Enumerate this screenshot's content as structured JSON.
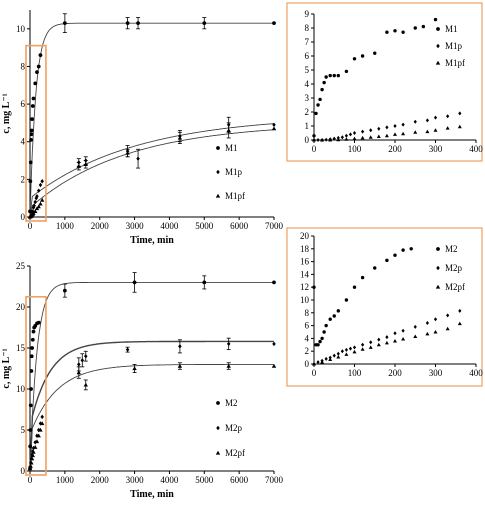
{
  "chart_data": [
    {
      "id": "main1",
      "type": "scatter",
      "xlabel": "Time, min",
      "ylabel": "c, mg L⁻¹",
      "xlim": [
        0,
        7000
      ],
      "ylim": [
        0,
        11
      ],
      "xticks": [
        0,
        1000,
        2000,
        3000,
        4000,
        5000,
        6000,
        7000
      ],
      "yticks": [
        0,
        2,
        4,
        6,
        8,
        10
      ],
      "zoom_box": {
        "x": [
          0,
          400
        ],
        "y": [
          0,
          9
        ]
      },
      "legend_position": "right",
      "series": [
        {
          "name": "M1",
          "marker": "circle",
          "x": [
            0,
            10,
            20,
            30,
            40,
            50,
            60,
            80,
            100,
            150,
            200,
            250,
            300,
            1000,
            2800,
            3100,
            5000,
            7000
          ],
          "y": [
            0.3,
            1.9,
            2.9,
            4.1,
            4.4,
            4.6,
            5.2,
            5.9,
            6.3,
            7.1,
            7.7,
            8.0,
            8.6,
            10.3,
            10.3,
            10.3,
            10.3,
            10.3
          ],
          "err": [
            0,
            0,
            0,
            0,
            0,
            0,
            0,
            0,
            0,
            0,
            0,
            0,
            0,
            0.5,
            0.3,
            0.3,
            0.3,
            0
          ],
          "fit": {
            "model": "exponential",
            "cmax": 10.3,
            "k": 0.006
          }
        },
        {
          "name": "M1p",
          "marker": "diamond",
          "x": [
            0,
            20,
            40,
            60,
            80,
            100,
            120,
            150,
            180,
            200,
            250,
            300,
            350,
            1400,
            1600,
            2800,
            3100,
            4300,
            5700,
            7000
          ],
          "y": [
            0,
            0.05,
            0.1,
            0.2,
            0.3,
            0.5,
            0.6,
            0.8,
            1.0,
            1.1,
            1.4,
            1.7,
            1.9,
            2.9,
            3.0,
            3.5,
            3.1,
            4.3,
            4.9,
            4.9
          ],
          "err": [
            0,
            0,
            0,
            0,
            0,
            0,
            0,
            0,
            0,
            0,
            0,
            0,
            0,
            0.2,
            0.2,
            0.3,
            0.5,
            0.3,
            0.4,
            0
          ],
          "fit": {
            "model": "offset_exponential",
            "c0": 1.0,
            "cmax": 5.4,
            "k": 0.00033
          }
        },
        {
          "name": "M1pf",
          "marker": "triangle",
          "x": [
            0,
            20,
            40,
            60,
            80,
            100,
            150,
            200,
            250,
            300,
            350,
            1400,
            1600,
            2800,
            4300,
            5700,
            7000
          ],
          "y": [
            0,
            0.02,
            0.05,
            0.1,
            0.15,
            0.2,
            0.3,
            0.45,
            0.55,
            0.7,
            0.9,
            2.7,
            2.8,
            3.4,
            4.2,
            4.6,
            4.7
          ],
          "err": [
            0,
            0,
            0,
            0,
            0,
            0,
            0,
            0,
            0,
            0,
            0,
            0.2,
            0.2,
            0.2,
            0.3,
            0.4,
            0
          ],
          "fit": {
            "model": "offset_exponential",
            "c0": 0.5,
            "cmax": 5.0,
            "k": 0.00036
          }
        }
      ]
    },
    {
      "id": "inset1",
      "type": "scatter",
      "xlim": [
        0,
        400
      ],
      "ylim": [
        0,
        9
      ],
      "xticks": [
        0,
        100,
        200,
        300,
        400
      ],
      "yticks": [
        0,
        1,
        2,
        3,
        4,
        5,
        6,
        7,
        8,
        9
      ],
      "legend_position": "right",
      "series": [
        {
          "name": "M1",
          "marker": "circle",
          "x": [
            0,
            5,
            10,
            15,
            20,
            25,
            30,
            40,
            50,
            60,
            80,
            100,
            120,
            150,
            180,
            200,
            220,
            250,
            270,
            300
          ],
          "y": [
            0.3,
            1.9,
            2.5,
            2.9,
            3.6,
            4.1,
            4.5,
            4.6,
            4.6,
            4.6,
            4.9,
            5.8,
            6.0,
            6.2,
            7.7,
            7.8,
            7.7,
            8.0,
            8.1,
            8.6
          ]
        },
        {
          "name": "M1p",
          "marker": "diamond",
          "x": [
            0,
            10,
            20,
            30,
            40,
            50,
            60,
            70,
            80,
            90,
            100,
            120,
            140,
            160,
            180,
            200,
            220,
            250,
            280,
            300,
            330,
            360
          ],
          "y": [
            0,
            0,
            0,
            0.02,
            0.05,
            0.1,
            0.15,
            0.2,
            0.3,
            0.4,
            0.5,
            0.6,
            0.7,
            0.8,
            0.9,
            1.0,
            1.1,
            1.3,
            1.4,
            1.6,
            1.7,
            1.9
          ]
        },
        {
          "name": "M1pf",
          "marker": "triangle",
          "x": [
            0,
            20,
            40,
            60,
            80,
            100,
            120,
            140,
            160,
            180,
            200,
            220,
            250,
            280,
            300,
            330,
            360
          ],
          "y": [
            0,
            0,
            0,
            0.02,
            0.05,
            0.1,
            0.15,
            0.2,
            0.25,
            0.3,
            0.4,
            0.45,
            0.55,
            0.6,
            0.7,
            0.85,
            0.95
          ]
        }
      ]
    },
    {
      "id": "main2",
      "type": "scatter",
      "xlabel": "Time, min",
      "ylabel": "c, mg L⁻¹",
      "xlim": [
        0,
        7000
      ],
      "ylim": [
        0,
        25
      ],
      "xticks": [
        0,
        1000,
        2000,
        3000,
        4000,
        5000,
        6000,
        7000
      ],
      "yticks": [
        0,
        5,
        10,
        15,
        20,
        25
      ],
      "zoom_box": {
        "x": [
          0,
          400
        ],
        "y": [
          0,
          21
        ]
      },
      "legend_position": "right",
      "series": [
        {
          "name": "M2",
          "marker": "circle",
          "x": [
            0,
            5,
            10,
            20,
            30,
            40,
            50,
            60,
            80,
            100,
            120,
            150,
            200,
            250,
            1000,
            3000,
            5000,
            7000
          ],
          "y": [
            0.3,
            3,
            5,
            8,
            10,
            12.2,
            14,
            15,
            16,
            17,
            17.5,
            17.7,
            18,
            18.1,
            22,
            23,
            23,
            23
          ],
          "err": [
            0,
            0,
            0,
            0,
            0,
            0,
            0,
            0,
            0,
            0,
            0,
            0,
            0,
            0,
            0.8,
            1.2,
            0.8,
            0
          ],
          "fit": {
            "model": "exponential",
            "cmax": 23,
            "k": 0.005
          }
        },
        {
          "name": "M2p",
          "marker": "diamond",
          "x": [
            0,
            20,
            40,
            60,
            80,
            100,
            150,
            200,
            250,
            300,
            350,
            1400,
            1500,
            1600,
            2800,
            4300,
            5700,
            7000
          ],
          "y": [
            0.5,
            1,
            1.5,
            2,
            2.4,
            2.8,
            3.5,
            4.3,
            5,
            5.8,
            6.6,
            13,
            13.5,
            14,
            14.8,
            15.2,
            15.5,
            15.5
          ],
          "err": [
            0,
            0,
            0,
            0,
            0,
            0,
            0,
            0,
            0,
            0,
            0,
            0.8,
            0.8,
            0.6,
            0.3,
            0.8,
            0.7,
            0
          ],
          "fit": {
            "model": "offset_exponential",
            "c0": 5.5,
            "cmax": 15.8,
            "k": 0.0018
          }
        },
        {
          "name": "M2pf",
          "marker": "triangle",
          "x": [
            0,
            20,
            40,
            60,
            80,
            100,
            150,
            200,
            250,
            300,
            350,
            1400,
            1600,
            3000,
            4300,
            5700,
            7000
          ],
          "y": [
            0.3,
            0.6,
            1,
            1.5,
            1.9,
            2.3,
            2.9,
            3.6,
            4.3,
            5,
            5.8,
            12,
            10.5,
            12.5,
            12.8,
            12.8,
            12.8
          ],
          "err": [
            0,
            0,
            0,
            0,
            0,
            0,
            0,
            0,
            0,
            0,
            0,
            0.7,
            0.6,
            0.5,
            0.4,
            0.4,
            0
          ],
          "fit": {
            "model": "offset_exponential",
            "c0": 4.5,
            "cmax": 13.0,
            "k": 0.0013
          }
        }
      ]
    },
    {
      "id": "inset2",
      "type": "scatter",
      "xlim": [
        0,
        400
      ],
      "ylim": [
        0,
        20
      ],
      "xticks": [
        0,
        100,
        200,
        300,
        400
      ],
      "yticks": [
        0,
        2,
        4,
        6,
        8,
        10,
        12,
        14,
        16,
        18,
        20
      ],
      "legend_position": "right",
      "series": [
        {
          "name": "M2",
          "marker": "circle",
          "x": [
            0,
            5,
            10,
            15,
            20,
            25,
            30,
            40,
            50,
            60,
            80,
            100,
            120,
            150,
            180,
            200,
            220,
            240
          ],
          "y": [
            12,
            3,
            3,
            3.5,
            4,
            5,
            6,
            7,
            7.5,
            8.3,
            10,
            12,
            13.5,
            15,
            16.2,
            17,
            17.8,
            18
          ]
        },
        {
          "name": "M2p",
          "marker": "diamond",
          "x": [
            0,
            10,
            20,
            30,
            40,
            50,
            60,
            70,
            80,
            90,
            100,
            120,
            140,
            160,
            180,
            200,
            220,
            250,
            280,
            300,
            330,
            360
          ],
          "y": [
            0,
            0.3,
            0.5,
            0.8,
            1.0,
            1.3,
            1.6,
            2.0,
            2.2,
            2.4,
            2.6,
            3.0,
            3.4,
            3.8,
            4.2,
            4.8,
            5.2,
            5.8,
            6.4,
            7.0,
            7.6,
            8.3
          ]
        },
        {
          "name": "M2pf",
          "marker": "triangle",
          "x": [
            0,
            20,
            40,
            60,
            80,
            100,
            120,
            140,
            160,
            180,
            200,
            220,
            250,
            280,
            300,
            330,
            360
          ],
          "y": [
            0,
            0.3,
            0.7,
            1.1,
            1.5,
            1.9,
            2.3,
            2.6,
            3.0,
            3.3,
            3.6,
            3.9,
            4.3,
            4.7,
            5.0,
            5.5,
            6.3
          ]
        }
      ]
    }
  ]
}
